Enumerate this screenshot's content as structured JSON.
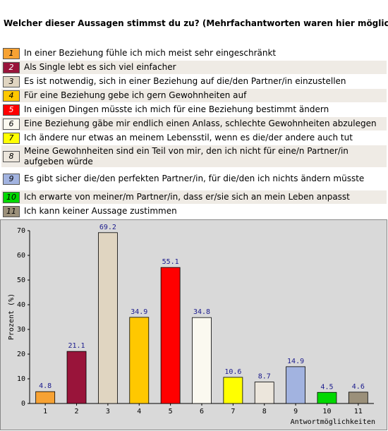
{
  "chart_data": {
    "type": "bar",
    "title": "Welcher dieser Aussagen stimmst du zu? (Mehrfachantworten waren hier möglich)",
    "legend": [
      "In einer Beziehung fühle ich mich meist sehr eingeschränkt",
      "Als Single lebt es sich viel einfacher",
      "Es ist notwendig, sich in einer Beziehung auf die/den Partner/in einzustellen",
      "Für eine Beziehung gebe ich gern Gewohnheiten auf",
      "In einigen Dingen müsste ich mich für eine Beziehung bestimmt ändern",
      "Eine Beziehung gäbe mir endlich einen Anlass, schlechte Gewohnheiten abzulegen",
      "Ich ändere nur etwas an meinem Lebensstil, wenn es die/der andere auch tut",
      "Meine Gewohnheiten sind ein Teil von mir, den ich nicht für eine/n Partner/in aufgeben würde",
      "Es gibt sicher die/den perfekten Partner/in, für die/den ich nichts ändern müsste",
      "Ich erwarte von meiner/m Partner/in, dass er/sie sich an mein Leben anpasst",
      "Ich kann keiner Aussage zustimmen"
    ],
    "categories": [
      "1",
      "2",
      "3",
      "4",
      "5",
      "6",
      "7",
      "8",
      "9",
      "10",
      "11"
    ],
    "values": [
      4.8,
      21.1,
      69.2,
      34.9,
      55.1,
      34.8,
      10.6,
      8.7,
      14.9,
      4.5,
      4.6
    ],
    "colors": [
      "#f7a233",
      "#99143a",
      "#e0d5c1",
      "#ffc800",
      "#ff0000",
      "#fbf9f0",
      "#ffff00",
      "#ece6dc",
      "#a2b3e0",
      "#00d800",
      "#9b907a"
    ],
    "xlabel": "Antwortmöglichkeiten",
    "ylabel": "Prozent (%)",
    "ylim": [
      0,
      70
    ],
    "yticks": [
      0,
      10,
      20,
      30,
      40,
      50,
      60,
      70
    ]
  }
}
